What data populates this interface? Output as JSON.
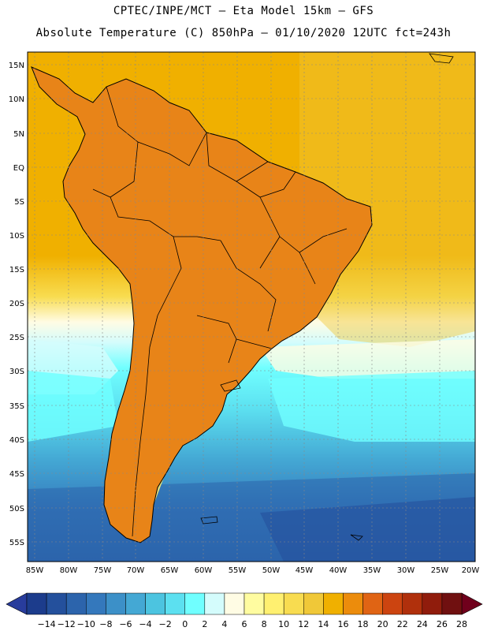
{
  "header": {
    "line1": "CPTEC/INPE/MCT –  Eta Model 15km – GFS",
    "line2": "Absolute Temperature (C) 850hPa – 01/10/2020 12UTC fct=243h"
  },
  "map": {
    "lat_labels": [
      "15N",
      "10N",
      "5N",
      "EQ",
      "5S",
      "10S",
      "15S",
      "20S",
      "25S",
      "30S",
      "35S",
      "40S",
      "45S",
      "50S",
      "55S"
    ],
    "lon_labels": [
      "85W",
      "80W",
      "75W",
      "70W",
      "65W",
      "60W",
      "55W",
      "50W",
      "45W",
      "40W",
      "35W",
      "30W",
      "25W",
      "20W"
    ],
    "ocean_color": "#f0b000",
    "land_warm_color": "#d86418",
    "land_hot_color": "#b83c10"
  },
  "colorbar": {
    "ticks": [
      "-14",
      "-12",
      "-10",
      "-8",
      "-6",
      "-4",
      "-2",
      "0",
      "2",
      "4",
      "6",
      "8",
      "10",
      "12",
      "14",
      "16",
      "18",
      "20",
      "22",
      "24",
      "26",
      "28"
    ],
    "colors": [
      "#1c3c8c",
      "#24509c",
      "#2c64ac",
      "#3478bc",
      "#3c90c8",
      "#44a8d4",
      "#4cc4e0",
      "#5ce0f0",
      "#70ffff",
      "#d4fcfc",
      "#fffce4",
      "#fffca0",
      "#fff070",
      "#f8dc50",
      "#f0c838",
      "#f0b000",
      "#ec8c0c",
      "#e06414",
      "#cc4410",
      "#b0300c",
      "#901c0c",
      "#701010"
    ],
    "under_color": "#283c9c",
    "over_color": "#70001c"
  }
}
